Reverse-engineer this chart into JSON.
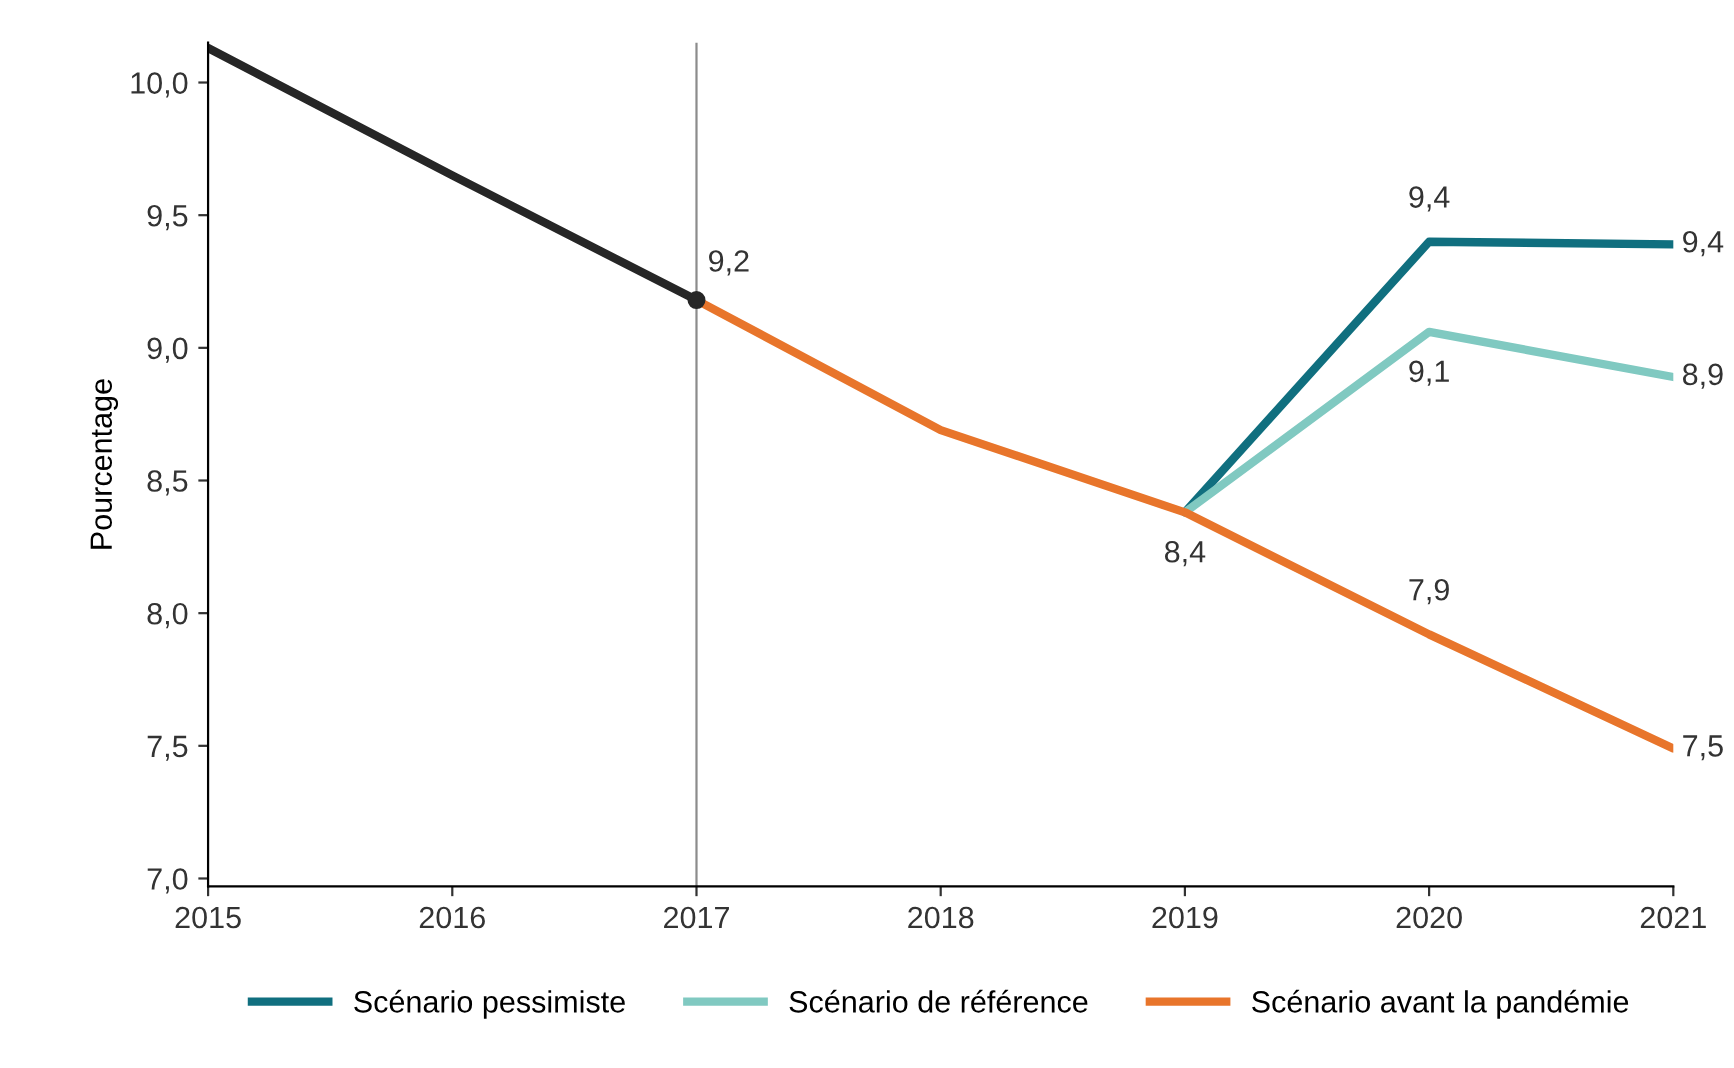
{
  "chart_data": {
    "type": "line",
    "ylabel": "Pourcentage",
    "xlim": [
      2015,
      2021
    ],
    "xticks": [
      2015,
      2016,
      2017,
      2018,
      2019,
      2020,
      2021
    ],
    "ylim": [
      6.97,
      10.15
    ],
    "yticks": [
      {
        "value": 7.0,
        "label": "7,0"
      },
      {
        "value": 7.5,
        "label": "7,5"
      },
      {
        "value": 8.0,
        "label": "8,0"
      },
      {
        "value": 8.5,
        "label": "8,5"
      },
      {
        "value": 9.0,
        "label": "9,0"
      },
      {
        "value": 9.5,
        "label": "9,5"
      },
      {
        "value": 10.0,
        "label": "10,0"
      }
    ],
    "grid": false,
    "legend": "bottom",
    "line_style": "solid",
    "ref_lines": [
      {
        "axis": "x",
        "value": 2017,
        "label": null,
        "color": "#8c8c8c"
      }
    ],
    "series": [
      {
        "color": "#262626",
        "x": [
          2015,
          2016,
          2017
        ],
        "values": [
          10.13,
          9.65,
          9.18
        ]
      },
      {
        "type": "scatter",
        "color": "#262626",
        "x": [
          2017
        ],
        "values": [
          9.18
        ]
      },
      {
        "name": "Scénario pessimiste",
        "color": "#106f7f",
        "x": [
          2019,
          2020,
          2021
        ],
        "values": [
          8.38,
          9.4,
          9.39
        ],
        "value_labels": [
          null,
          "9,4",
          "9,4"
        ]
      },
      {
        "name": "Scénario de référence",
        "color": "#80c9c1",
        "x": [
          2019,
          2020,
          2021
        ],
        "values": [
          8.38,
          9.06,
          8.89
        ],
        "value_labels": [
          null,
          "9,1",
          "8,9"
        ]
      },
      {
        "name": "Scénario avant la pandémie",
        "color": "#e8752b",
        "x": [
          2017,
          2018,
          2019,
          2020,
          2021
        ],
        "values": [
          9.18,
          8.69,
          8.38,
          7.92,
          7.49
        ],
        "value_labels": [
          "9,2",
          null,
          "8,4",
          "7,9",
          "7,5"
        ]
      }
    ]
  }
}
